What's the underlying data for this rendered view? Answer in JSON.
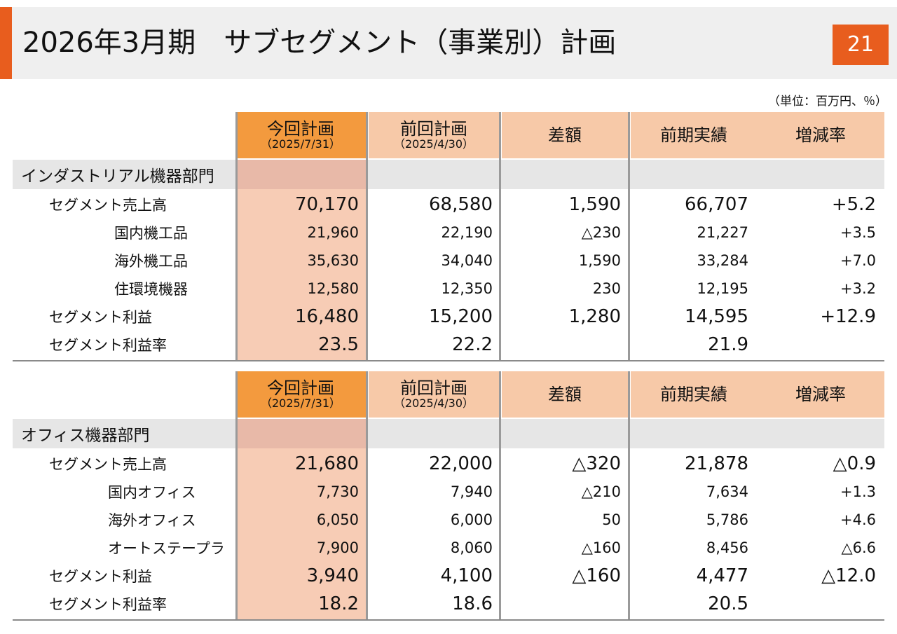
{
  "header": {
    "title": "2026年3月期　サブセグメント（事業別）計画",
    "page_number": "21",
    "accent_color": "#e85d1e"
  },
  "unit_note": "（単位：百万円、％）",
  "columns": {
    "current_plan": "今回計画",
    "current_plan_date": "（2025/7/31）",
    "previous_plan": "前回計画",
    "previous_plan_date": "（2025/4/30）",
    "difference": "差額",
    "prior_actual": "前期実績",
    "change_rate": "増減率"
  },
  "industrial": {
    "title": "インダストリアル機器部門",
    "rows": [
      {
        "label": "セグメント売上高",
        "current": "70,170",
        "previous": "68,580",
        "diff": "1,590",
        "prior": "66,707",
        "rate": "+5.2"
      },
      {
        "label": "国内機工品",
        "current": "21,960",
        "previous": "22,190",
        "diff": "△230",
        "prior": "21,227",
        "rate": "+3.5"
      },
      {
        "label": "海外機工品",
        "current": "35,630",
        "previous": "34,040",
        "diff": "1,590",
        "prior": "33,284",
        "rate": "+7.0"
      },
      {
        "label": "住環境機器",
        "current": "12,580",
        "previous": "12,350",
        "diff": "230",
        "prior": "12,195",
        "rate": "+3.2"
      },
      {
        "label": "セグメント利益",
        "current": "16,480",
        "previous": "15,200",
        "diff": "1,280",
        "prior": "14,595",
        "rate": "+12.9"
      },
      {
        "label": "セグメント利益率",
        "current": "23.5",
        "previous": "22.2",
        "diff": "",
        "prior": "21.9",
        "rate": ""
      }
    ]
  },
  "office": {
    "title": "オフィス機器部門",
    "rows": [
      {
        "label": "セグメント売上高",
        "current": "21,680",
        "previous": "22,000",
        "diff": "△320",
        "prior": "21,878",
        "rate": "△0.9"
      },
      {
        "label": "国内オフィス",
        "current": "7,730",
        "previous": "7,940",
        "diff": "△210",
        "prior": "7,634",
        "rate": "+1.3"
      },
      {
        "label": "海外オフィス",
        "current": "6,050",
        "previous": "6,000",
        "diff": "50",
        "prior": "5,786",
        "rate": "+4.6"
      },
      {
        "label": "オートステープラ",
        "current": "7,900",
        "previous": "8,060",
        "diff": "△160",
        "prior": "8,456",
        "rate": "△6.6"
      },
      {
        "label": "セグメント利益",
        "current": "3,940",
        "previous": "4,100",
        "diff": "△160",
        "prior": "4,477",
        "rate": "△12.0"
      },
      {
        "label": "セグメント利益率",
        "current": "18.2",
        "previous": "18.6",
        "diff": "",
        "prior": "20.5",
        "rate": ""
      }
    ]
  }
}
